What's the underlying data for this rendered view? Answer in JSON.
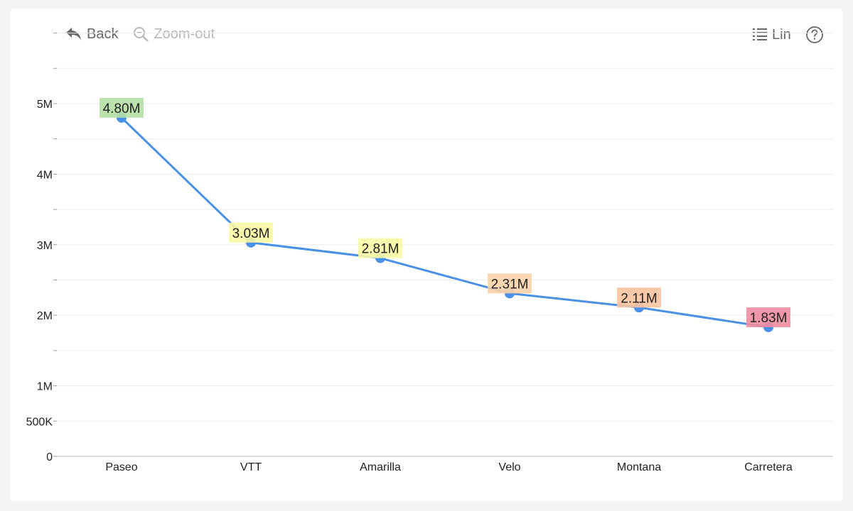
{
  "toolbar": {
    "back_label": "Back",
    "zoom_out_label": "Zoom-out",
    "scale_label": "Lin",
    "icons": {
      "back": "back-arrow-icon",
      "zoom_out": "zoom-out-icon",
      "scale": "list-icon",
      "help": "help-icon"
    }
  },
  "chart_data": {
    "type": "line",
    "categories": [
      "Paseo",
      "VTT",
      "Amarilla",
      "Velo",
      "Montana",
      "Carretera"
    ],
    "values": [
      4800000,
      3030000,
      2810000,
      2310000,
      2110000,
      1830000
    ],
    "data_labels": [
      "4.80M",
      "3.03M",
      "2.81M",
      "2.31M",
      "2.11M",
      "1.83M"
    ],
    "label_colors": [
      "#b5e0a5",
      "#fafaa6",
      "#fafaa6",
      "#f9d3a8",
      "#f9c3a0",
      "#f08ca0"
    ],
    "y_ticks": [
      {
        "value": 0,
        "label": "0"
      },
      {
        "value": 500000,
        "label": "500K"
      },
      {
        "value": 1000000,
        "label": "1M"
      },
      {
        "value": 2000000,
        "label": "2M"
      },
      {
        "value": 3000000,
        "label": "3M"
      },
      {
        "value": 4000000,
        "label": "4M"
      },
      {
        "value": 5000000,
        "label": "5M"
      }
    ],
    "ylim": [
      0,
      6000000
    ],
    "grid": true,
    "line_color": "#4a90e8",
    "marker_color": "#4a90e8",
    "title": "",
    "xlabel": "",
    "ylabel": ""
  }
}
